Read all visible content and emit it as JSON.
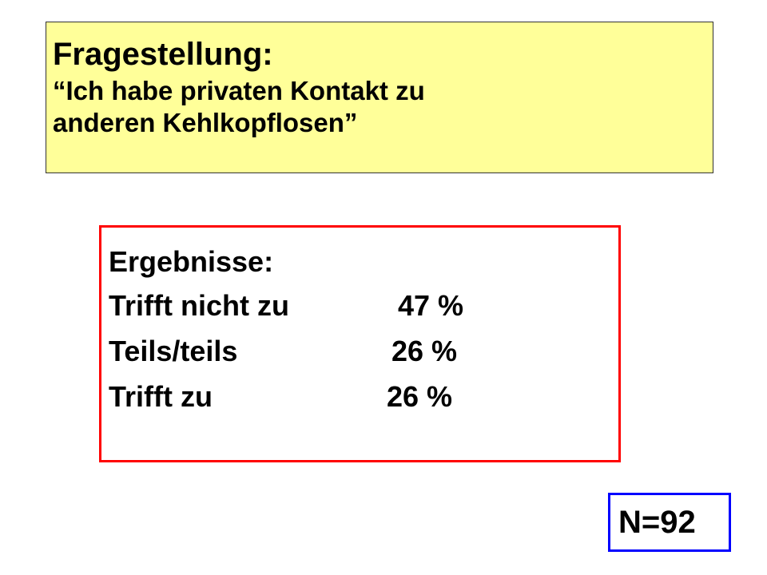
{
  "question": {
    "title": "Fragestellung:",
    "line1": "“Ich habe privaten Kontakt zu",
    "line2": "anderen Kehlkopflosen”"
  },
  "results": {
    "heading": "Ergebnisse:",
    "rows": [
      {
        "label": "Trifft nicht zu",
        "value": "47 %"
      },
      {
        "label": "Teils/teils",
        "value": "26 %"
      },
      {
        "label": "Trifft zu",
        "value": "26 %"
      }
    ]
  },
  "sample": {
    "label": "N=92"
  },
  "colors": {
    "question_background": "#ffff99",
    "results_border": "#ff0000",
    "sample_border": "#0000ff"
  }
}
